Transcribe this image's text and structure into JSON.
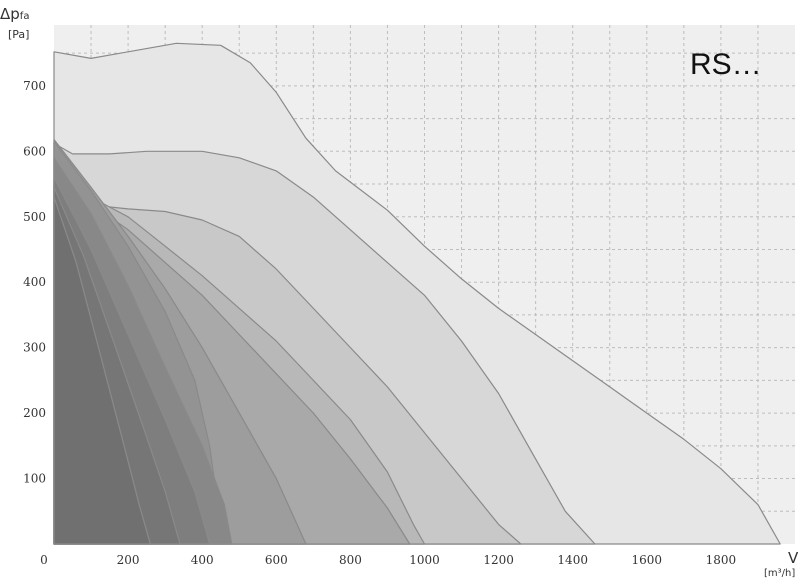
{
  "chart_data": {
    "type": "area",
    "title": "",
    "badge": "RS…",
    "ylabel": "Δp",
    "ylabel_sub": "fa",
    "yunit": "[Pa]",
    "xlabel": "V",
    "xunit": "[m³/h]",
    "xlim": [
      0,
      2000
    ],
    "ylim": [
      0,
      760
    ],
    "xticks": [
      0,
      200,
      400,
      600,
      800,
      1000,
      1200,
      1400,
      1600,
      1800
    ],
    "yticks": [
      100,
      200,
      300,
      400,
      500,
      600,
      700
    ],
    "grid": true,
    "series": [
      {
        "fill": "#e6e6e6",
        "points": [
          [
            0,
            752
          ],
          [
            100,
            742
          ],
          [
            200,
            752
          ],
          [
            330,
            765
          ],
          [
            450,
            762
          ],
          [
            530,
            735
          ],
          [
            600,
            690
          ],
          [
            680,
            620
          ],
          [
            760,
            570
          ],
          [
            900,
            510
          ],
          [
            1000,
            455
          ],
          [
            1100,
            405
          ],
          [
            1200,
            360
          ],
          [
            1350,
            300
          ],
          [
            1500,
            240
          ],
          [
            1600,
            200
          ],
          [
            1700,
            160
          ],
          [
            1800,
            115
          ],
          [
            1900,
            60
          ],
          [
            1960,
            0
          ]
        ]
      },
      {
        "fill": "#d7d7d7",
        "points": [
          [
            0,
            612
          ],
          [
            50,
            596
          ],
          [
            150,
            596
          ],
          [
            250,
            600
          ],
          [
            400,
            600
          ],
          [
            500,
            590
          ],
          [
            600,
            570
          ],
          [
            700,
            530
          ],
          [
            800,
            480
          ],
          [
            900,
            430
          ],
          [
            1000,
            380
          ],
          [
            1100,
            310
          ],
          [
            1200,
            230
          ],
          [
            1300,
            130
          ],
          [
            1380,
            50
          ],
          [
            1460,
            0
          ]
        ]
      },
      {
        "fill": "#c8c8c8",
        "points": [
          [
            0,
            550
          ],
          [
            100,
            518
          ],
          [
            200,
            512
          ],
          [
            300,
            508
          ],
          [
            400,
            495
          ],
          [
            500,
            470
          ],
          [
            600,
            420
          ],
          [
            700,
            360
          ],
          [
            800,
            300
          ],
          [
            900,
            240
          ],
          [
            1000,
            170
          ],
          [
            1100,
            100
          ],
          [
            1200,
            30
          ],
          [
            1260,
            0
          ]
        ]
      },
      {
        "fill": "#b8b8b8",
        "points": [
          [
            0,
            555
          ],
          [
            100,
            530
          ],
          [
            200,
            500
          ],
          [
            300,
            455
          ],
          [
            400,
            410
          ],
          [
            500,
            360
          ],
          [
            600,
            310
          ],
          [
            700,
            250
          ],
          [
            800,
            190
          ],
          [
            900,
            110
          ],
          [
            970,
            30
          ],
          [
            1000,
            0
          ]
        ]
      },
      {
        "fill": "#a9a9a9",
        "points": [
          [
            0,
            545
          ],
          [
            100,
            520
          ],
          [
            200,
            480
          ],
          [
            300,
            430
          ],
          [
            400,
            380
          ],
          [
            500,
            320
          ],
          [
            600,
            260
          ],
          [
            700,
            200
          ],
          [
            800,
            130
          ],
          [
            900,
            55
          ],
          [
            960,
            0
          ]
        ]
      },
      {
        "fill": "#9d9d9d",
        "points": [
          [
            0,
            618
          ],
          [
            100,
            545
          ],
          [
            200,
            470
          ],
          [
            300,
            390
          ],
          [
            400,
            300
          ],
          [
            500,
            200
          ],
          [
            600,
            100
          ],
          [
            680,
            0
          ]
        ]
      },
      {
        "fill": "#939393",
        "points": [
          [
            0,
            615
          ],
          [
            100,
            540
          ],
          [
            200,
            455
          ],
          [
            300,
            355
          ],
          [
            380,
            250
          ],
          [
            420,
            150
          ],
          [
            440,
            70
          ],
          [
            460,
            0
          ]
        ]
      },
      {
        "fill": "#888888",
        "points": [
          [
            0,
            590
          ],
          [
            100,
            505
          ],
          [
            200,
            395
          ],
          [
            300,
            270
          ],
          [
            400,
            150
          ],
          [
            460,
            60
          ],
          [
            480,
            0
          ]
        ]
      },
      {
        "fill": "#7e7e7e",
        "points": [
          [
            0,
            560
          ],
          [
            100,
            450
          ],
          [
            200,
            320
          ],
          [
            300,
            190
          ],
          [
            380,
            80
          ],
          [
            420,
            0
          ]
        ]
      },
      {
        "fill": "#767676",
        "points": [
          [
            0,
            545
          ],
          [
            80,
            440
          ],
          [
            160,
            310
          ],
          [
            240,
            180
          ],
          [
            300,
            80
          ],
          [
            340,
            0
          ]
        ]
      },
      {
        "fill": "#707070",
        "points": [
          [
            0,
            530
          ],
          [
            60,
            430
          ],
          [
            120,
            300
          ],
          [
            180,
            170
          ],
          [
            230,
            60
          ],
          [
            260,
            0
          ]
        ]
      }
    ]
  }
}
